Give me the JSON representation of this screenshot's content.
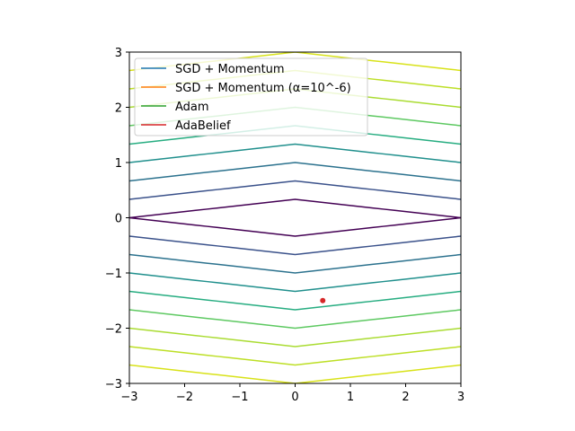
{
  "chart_data": {
    "type": "line",
    "title": "",
    "xlabel": "",
    "ylabel": "",
    "xlim": [
      -3,
      3
    ],
    "ylim": [
      -3,
      3
    ],
    "x_ticks": [
      -3,
      -2,
      -1,
      0,
      1,
      2,
      3
    ],
    "y_ticks": [
      -3,
      -2,
      -1,
      0,
      1,
      2,
      3
    ],
    "x_tick_labels": [
      "−3",
      "−2",
      "−1",
      "0",
      "1",
      "2",
      "3"
    ],
    "y_tick_labels": [
      "−3",
      "−2",
      "−1",
      "0",
      "1",
      "2",
      "3"
    ],
    "grid": false,
    "contour": {
      "function": "|x|/9 + |y|",
      "levels": [
        0.3333,
        0.6667,
        1.0,
        1.3333,
        1.6667,
        2.0,
        2.3333,
        2.6667,
        3.0
      ],
      "colors": [
        "#440154",
        "#3b528b",
        "#2c728e",
        "#21908d",
        "#27ad81",
        "#5ec962",
        "#aadc32",
        "#bddf26",
        "#d8e219"
      ]
    },
    "series": [
      {
        "name": "SGD + Momentum",
        "color": "#1f77b4",
        "x": [],
        "y": []
      },
      {
        "name": "SGD + Momentum (α=10^-6)",
        "color": "#ff7f0e",
        "x": [],
        "y": []
      },
      {
        "name": "Adam",
        "color": "#2ca02c",
        "x": [],
        "y": []
      },
      {
        "name": "AdaBelief",
        "color": "#d62728",
        "x": [
          0.5
        ],
        "y": [
          -1.5
        ]
      }
    ],
    "legend_position": "top-left"
  }
}
